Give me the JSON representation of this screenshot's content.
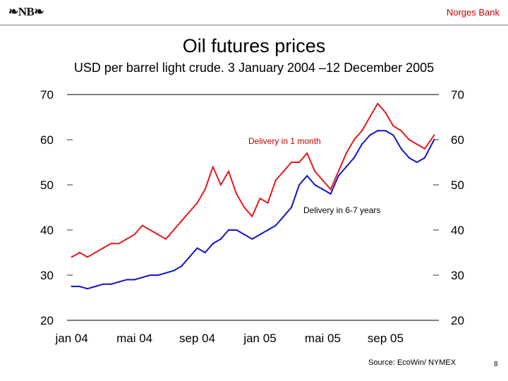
{
  "header": {
    "logo_text": "❧NB❧",
    "bank_name": "Norges Bank"
  },
  "colors": {
    "series1": "#e41a1c",
    "series2": "#1515c8",
    "accent": "#c00000"
  },
  "footer": {
    "source": "Source: EcoWin/ NYMEX",
    "page_number": "8"
  },
  "chart_data": {
    "type": "line",
    "title": "Oil futures prices",
    "subtitle": "USD per barrel light crude. 3 January 2004 –12 December 2005",
    "xlabel": "",
    "ylabel": "",
    "ylim": [
      20,
      70
    ],
    "yticks": [
      20,
      30,
      40,
      50,
      60,
      70
    ],
    "ytick_labels": [
      "20",
      "30",
      "40",
      "50",
      "60",
      "70"
    ],
    "xtick_labels": [
      "jan 04",
      "mai 04",
      "sep 04",
      "jan 05",
      "mai 05",
      "sep 05"
    ],
    "xtick_positions": [
      0,
      4,
      8,
      12,
      16,
      20
    ],
    "xlim": [
      -0.3,
      23.4
    ],
    "grid": false,
    "x_unit": "months since January 2004",
    "series": [
      {
        "name": "Delivery in 1 month",
        "color": "#e41a1c",
        "x": [
          0,
          0.5,
          1,
          1.5,
          2,
          2.5,
          3,
          3.5,
          4,
          4.5,
          5,
          5.5,
          6,
          6.5,
          7,
          7.5,
          8,
          8.5,
          9,
          9.5,
          10,
          10.5,
          11,
          11.5,
          12,
          12.5,
          13,
          13.5,
          14,
          14.5,
          15,
          15.5,
          16,
          16.5,
          17,
          17.5,
          18,
          18.5,
          19,
          19.5,
          20,
          20.5,
          21,
          21.5,
          22,
          22.5,
          23.1
        ],
        "values": [
          34,
          35,
          34,
          35,
          36,
          37,
          37,
          38,
          39,
          41,
          40,
          39,
          38,
          40,
          42,
          44,
          46,
          49,
          54,
          50,
          53,
          48,
          45,
          43,
          47,
          46,
          51,
          53,
          55,
          55,
          57,
          53,
          51,
          49,
          53,
          57,
          60,
          62,
          65,
          68,
          66,
          63,
          62,
          60,
          59,
          58,
          61
        ]
      },
      {
        "name": "Delivery in 6-7 years",
        "color": "#1515c8",
        "x": [
          0,
          0.5,
          1,
          1.5,
          2,
          2.5,
          3,
          3.5,
          4,
          4.5,
          5,
          5.5,
          6,
          6.5,
          7,
          7.5,
          8,
          8.5,
          9,
          9.5,
          10,
          10.5,
          11,
          11.5,
          12,
          12.5,
          13,
          13.5,
          14,
          14.5,
          15,
          15.5,
          16,
          16.5,
          17,
          17.5,
          18,
          18.5,
          19,
          19.5,
          20,
          20.5,
          21,
          21.5,
          22,
          22.5,
          23.1
        ],
        "values": [
          27.5,
          27.5,
          27,
          27.5,
          28,
          28,
          28.5,
          29,
          29,
          29.5,
          30,
          30,
          30.5,
          31,
          32,
          34,
          36,
          35,
          37,
          38,
          40,
          40,
          39,
          38,
          39,
          40,
          41,
          43,
          45,
          50,
          52,
          50,
          49,
          48,
          52,
          54,
          56,
          59,
          61,
          62,
          62,
          61,
          58,
          56,
          55,
          56,
          60
        ]
      }
    ],
    "annotations": [
      {
        "text": "Delivery in 1 month",
        "series": 0
      },
      {
        "text": "Delivery in 6-7 years",
        "series": 1
      }
    ]
  }
}
